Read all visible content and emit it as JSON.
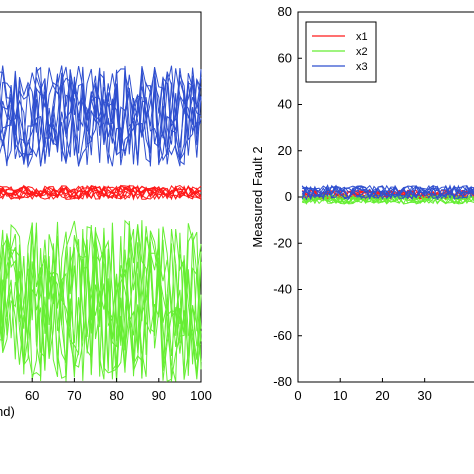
{
  "chart_data": [
    {
      "type": "line",
      "panel": "left",
      "title": "",
      "xlabel": "nd)",
      "ylabel": "",
      "xlim": [
        50,
        100
      ],
      "ylim": [
        -80,
        80
      ],
      "xticks": [
        60,
        70,
        80,
        90,
        100
      ],
      "grid": false,
      "legend": null,
      "series": [
        {
          "color": "#2f4fcf",
          "center": 35,
          "spread": 22,
          "count": 10
        },
        {
          "color": "#ff1a1a",
          "center": 2,
          "spread": 3,
          "count": 10
        },
        {
          "color": "#66ee33",
          "center": -45,
          "spread": 35,
          "count": 10
        }
      ]
    },
    {
      "type": "line",
      "panel": "right",
      "title": "",
      "xlabel": "",
      "ylabel": "Measured Fault 2",
      "xlim": [
        0,
        45
      ],
      "ylim": [
        -80,
        80
      ],
      "xticks": [
        0,
        10,
        20,
        30
      ],
      "yticks": [
        80,
        60,
        40,
        20,
        0,
        -20,
        -40,
        -60,
        -80
      ],
      "grid": false,
      "legend": {
        "position": "top-left",
        "entries": [
          {
            "name": "x1",
            "color": "#ff1a1a"
          },
          {
            "name": "x2",
            "color": "#66ee33"
          },
          {
            "name": "x3",
            "color": "#2f4fcf"
          }
        ]
      },
      "series": [
        {
          "color": "#ff1a1a",
          "center": 1,
          "spread": 2,
          "count": 8
        },
        {
          "color": "#66ee33",
          "center": -1,
          "spread": 2,
          "count": 8
        },
        {
          "color": "#2f4fcf",
          "center": 2,
          "spread": 3,
          "count": 8
        }
      ]
    }
  ]
}
